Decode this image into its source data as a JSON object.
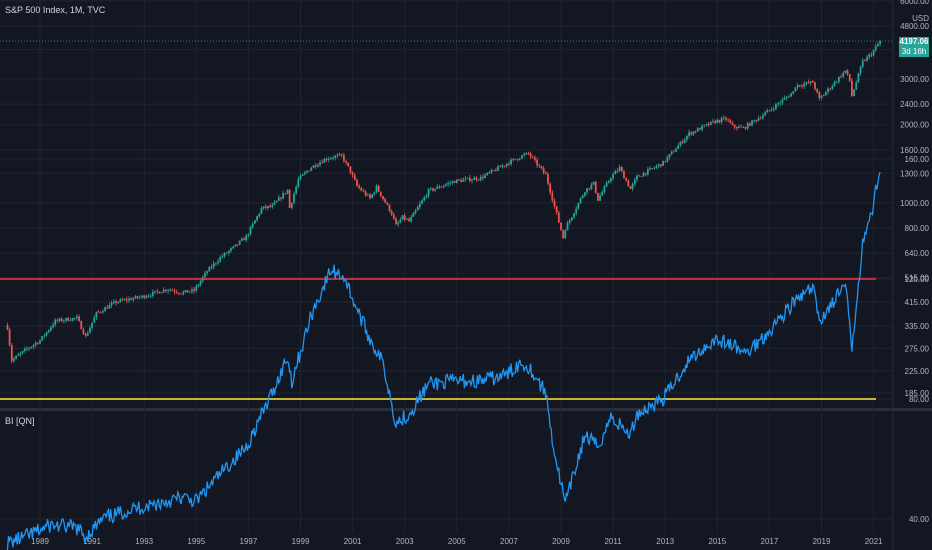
{
  "main_legend": "S&P 500 Index, 1M, TVC",
  "indicator_legend": "BI [QN]",
  "currency": "USD",
  "last_price": "4197.06",
  "countdown": "3d 16h",
  "colors": {
    "background": "#131722",
    "grid": "#1f2431",
    "up": "#26a69a",
    "down": "#ef5350",
    "bi_line": "#2196f3",
    "upper_level": "#f23645",
    "lower_level": "#ffeb3b",
    "axis_text": "#b2b5be"
  },
  "chart_data": [
    {
      "type": "candlestick",
      "title": "S&P 500 Index, 1M, TVC",
      "scale": "log",
      "ylabel": "USD",
      "y_ticks": [
        "6000.00",
        "4800.00",
        "3900.00",
        "3000.00",
        "2400.00",
        "2000.00",
        "1600.00",
        "1300.00",
        "1000.00",
        "800.00",
        "640.00",
        "515.00",
        "415.00",
        "335.00",
        "275.00",
        "225.00",
        "185.00"
      ],
      "series_points": [
        [
          "1987-10",
          331
        ],
        [
          "1987-12",
          247
        ],
        [
          "1988-06",
          270
        ],
        [
          "1989-01",
          295
        ],
        [
          "1989-08",
          350
        ],
        [
          "1990-06",
          360
        ],
        [
          "1990-10",
          305
        ],
        [
          "1991-03",
          375
        ],
        [
          "1991-12",
          415
        ],
        [
          "1992-12",
          435
        ],
        [
          "1993-12",
          466
        ],
        [
          "1994-06",
          450
        ],
        [
          "1994-12",
          459
        ],
        [
          "1995-06",
          545
        ],
        [
          "1995-12",
          615
        ],
        [
          "1996-06",
          670
        ],
        [
          "1996-12",
          740
        ],
        [
          "1997-07",
          950
        ],
        [
          "1997-12",
          970
        ],
        [
          "1998-07",
          1120
        ],
        [
          "1998-08",
          957
        ],
        [
          "1998-12",
          1229
        ],
        [
          "1999-06",
          1372
        ],
        [
          "1999-12",
          1469
        ],
        [
          "2000-03",
          1498
        ],
        [
          "2000-08",
          1517
        ],
        [
          "2000-12",
          1320
        ],
        [
          "2001-03",
          1160
        ],
        [
          "2001-09",
          1040
        ],
        [
          "2001-12",
          1148
        ],
        [
          "2002-07",
          911
        ],
        [
          "2002-09",
          815
        ],
        [
          "2002-12",
          880
        ],
        [
          "2003-03",
          848
        ],
        [
          "2003-12",
          1112
        ],
        [
          "2004-12",
          1212
        ],
        [
          "2005-12",
          1248
        ],
        [
          "2006-12",
          1418
        ],
        [
          "2007-06",
          1503
        ],
        [
          "2007-10",
          1549
        ],
        [
          "2008-06",
          1280
        ],
        [
          "2008-10",
          968
        ],
        [
          "2009-02",
          735
        ],
        [
          "2009-03",
          797
        ],
        [
          "2009-12",
          1115
        ],
        [
          "2010-04",
          1187
        ],
        [
          "2010-06",
          1030
        ],
        [
          "2010-12",
          1258
        ],
        [
          "2011-04",
          1363
        ],
        [
          "2011-09",
          1131
        ],
        [
          "2011-12",
          1258
        ],
        [
          "2012-12",
          1426
        ],
        [
          "2013-12",
          1848
        ],
        [
          "2014-12",
          2059
        ],
        [
          "2015-05",
          2107
        ],
        [
          "2015-08",
          1972
        ],
        [
          "2016-01",
          1940
        ],
        [
          "2016-12",
          2239
        ],
        [
          "2017-12",
          2674
        ],
        [
          "2018-01",
          2824
        ],
        [
          "2018-09",
          2914
        ],
        [
          "2018-12",
          2507
        ],
        [
          "2019-12",
          3231
        ],
        [
          "2020-02",
          2954
        ],
        [
          "2020-03",
          2585
        ],
        [
          "2020-08",
          3500
        ],
        [
          "2020-12",
          3756
        ],
        [
          "2021-04",
          4197
        ]
      ]
    },
    {
      "type": "line",
      "title": "BI [QN]",
      "ylim": [
        20,
        170
      ],
      "y_ticks": [
        "160.00",
        "120.00",
        "80.00",
        "40.00"
      ],
      "levels": [
        120,
        80
      ],
      "x_ticks": [
        "1989",
        "1991",
        "1993",
        "1995",
        "1997",
        "1999",
        "2001",
        "2003",
        "2005",
        "2007",
        "2009",
        "2011",
        "2013",
        "2015",
        "2017",
        "2019",
        "2021"
      ],
      "series": [
        {
          "values": [
            [
              "1987-10",
              32
            ],
            [
              "1988-06",
              34
            ],
            [
              "1989-06",
              38
            ],
            [
              "1990-06",
              37
            ],
            [
              "1990-10",
              34
            ],
            [
              "1991-06",
              40
            ],
            [
              "1992-06",
              43
            ],
            [
              "1993-06",
              45
            ],
            [
              "1994-06",
              47
            ],
            [
              "1995-01",
              46
            ],
            [
              "1995-12",
              55
            ],
            [
              "1996-12",
              64
            ],
            [
              "1997-12",
              82
            ],
            [
              "1998-07",
              94
            ],
            [
              "1998-09",
              86
            ],
            [
              "1999-06",
              108
            ],
            [
              "1999-12",
              118
            ],
            [
              "2000-03",
              123
            ],
            [
              "2000-09",
              121
            ],
            [
              "2001-03",
              110
            ],
            [
              "2001-09",
              100
            ],
            [
              "2002-03",
              92
            ],
            [
              "2002-09",
              72
            ],
            [
              "2003-03",
              75
            ],
            [
              "2003-12",
              85
            ],
            [
              "2004-12",
              86
            ],
            [
              "2005-12",
              86
            ],
            [
              "2006-12",
              88
            ],
            [
              "2007-06",
              92
            ],
            [
              "2007-10",
              91
            ],
            [
              "2008-06",
              82
            ],
            [
              "2008-10",
              62
            ],
            [
              "2009-03",
              45
            ],
            [
              "2009-12",
              68
            ],
            [
              "2010-06",
              64
            ],
            [
              "2010-12",
              74
            ],
            [
              "2011-09",
              68
            ],
            [
              "2011-12",
              75
            ],
            [
              "2012-12",
              80
            ],
            [
              "2013-12",
              93
            ],
            [
              "2014-12",
              100
            ],
            [
              "2015-08",
              98
            ],
            [
              "2016-02",
              95
            ],
            [
              "2016-12",
              102
            ],
            [
              "2017-12",
              112
            ],
            [
              "2018-09",
              117
            ],
            [
              "2018-12",
              106
            ],
            [
              "2019-12",
              118
            ],
            [
              "2020-03",
              97
            ],
            [
              "2020-08",
              133
            ],
            [
              "2020-12",
              141
            ],
            [
              "2021-04",
              158
            ]
          ]
        }
      ]
    }
  ]
}
